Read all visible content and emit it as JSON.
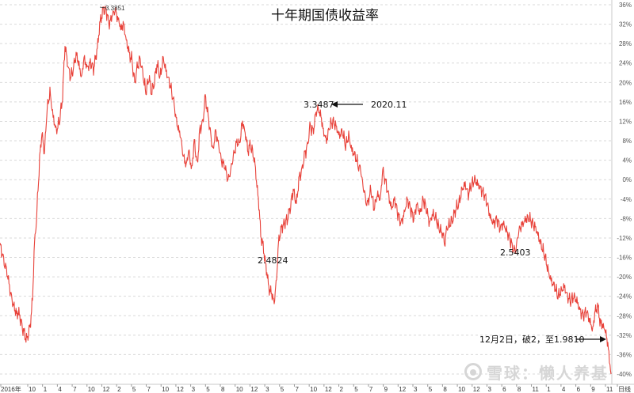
{
  "chart_data": {
    "type": "line",
    "title": "十年期国债收益率",
    "y_tick_labels": [
      "36%",
      "32%",
      "28%",
      "24%",
      "20%",
      "16%",
      "12%",
      "8%",
      "4%",
      "0%",
      "-4%",
      "-8%",
      "-12%",
      "-16%",
      "-20%",
      "-24%",
      "-28%",
      "-32%",
      "-36%",
      "-40%"
    ],
    "y_values": [
      36,
      32,
      28,
      24,
      20,
      16,
      12,
      8,
      4,
      0,
      -4,
      -8,
      -12,
      -16,
      -20,
      -24,
      -28,
      -32,
      -36,
      -40
    ],
    "ylim": [
      -41,
      37
    ],
    "x_tick_labels": [
      "2016年",
      "10",
      "1",
      "4",
      "7",
      "10",
      "12",
      "2",
      "5",
      "7",
      "10",
      "12",
      "3",
      "5",
      "8",
      "10",
      "12",
      "3",
      "5",
      "7",
      "10",
      "12",
      "2",
      "5",
      "7",
      "9",
      "12",
      "3",
      "5",
      "8",
      "10",
      "12",
      "3",
      "6",
      "8",
      "11",
      "1",
      "4",
      "6",
      "9",
      "11",
      "日线"
    ],
    "grid": true,
    "series": [
      {
        "color": "#e8423a",
        "anchors": [
          [
            0,
            -13.5
          ],
          [
            4,
            -16
          ],
          [
            10,
            -20
          ],
          [
            14,
            -24
          ],
          [
            19,
            -27
          ],
          [
            25,
            -28
          ],
          [
            29,
            -31
          ],
          [
            34,
            -33
          ],
          [
            38,
            -30
          ],
          [
            41,
            -25
          ],
          [
            43,
            -15
          ],
          [
            46,
            -8
          ],
          [
            50,
            4
          ],
          [
            53,
            10
          ],
          [
            56,
            5
          ],
          [
            59,
            14
          ],
          [
            63,
            18
          ],
          [
            67,
            13
          ],
          [
            71,
            10
          ],
          [
            75,
            12
          ],
          [
            79,
            17
          ],
          [
            82,
            28
          ],
          [
            85,
            24
          ],
          [
            89,
            21
          ],
          [
            93,
            23
          ],
          [
            96,
            26
          ],
          [
            99,
            24
          ],
          [
            103,
            21
          ],
          [
            106,
            25
          ],
          [
            110,
            23
          ],
          [
            114,
            24
          ],
          [
            118,
            23
          ],
          [
            121,
            25
          ],
          [
            124,
            29
          ],
          [
            127,
            33
          ],
          [
            130,
            35
          ],
          [
            134,
            34.8
          ],
          [
            138,
            32
          ],
          [
            142,
            34
          ],
          [
            145,
            35
          ],
          [
            149,
            33
          ],
          [
            153,
            31
          ],
          [
            156,
            32
          ],
          [
            160,
            28
          ],
          [
            163,
            26
          ],
          [
            166,
            25
          ],
          [
            170,
            20
          ],
          [
            173,
            23
          ],
          [
            177,
            25
          ],
          [
            180,
            22
          ],
          [
            184,
            18
          ],
          [
            188,
            21
          ],
          [
            191,
            18
          ],
          [
            195,
            20
          ],
          [
            198,
            24
          ],
          [
            202,
            21
          ],
          [
            206,
            25
          ],
          [
            210,
            22
          ],
          [
            214,
            20
          ],
          [
            218,
            17
          ],
          [
            221,
            14
          ],
          [
            224,
            11
          ],
          [
            228,
            9
          ],
          [
            231,
            5
          ],
          [
            235,
            3
          ],
          [
            238,
            6
          ],
          [
            242,
            2
          ],
          [
            245,
            8
          ],
          [
            249,
            3
          ],
          [
            252,
            10
          ],
          [
            256,
            12
          ],
          [
            259,
            17
          ],
          [
            262,
            14
          ],
          [
            266,
            9
          ],
          [
            269,
            6
          ],
          [
            272,
            10
          ],
          [
            276,
            7
          ],
          [
            279,
            4
          ],
          [
            283,
            3
          ],
          [
            286,
            1
          ],
          [
            289,
            0
          ],
          [
            292,
            3
          ],
          [
            295,
            5
          ],
          [
            299,
            8
          ],
          [
            302,
            7
          ],
          [
            306,
            12
          ],
          [
            310,
            9
          ],
          [
            313,
            6
          ],
          [
            316,
            7
          ],
          [
            320,
            5
          ],
          [
            323,
            1
          ],
          [
            326,
            -4
          ],
          [
            329,
            -11
          ],
          [
            332,
            -14
          ],
          [
            335,
            -17
          ],
          [
            338,
            -21
          ],
          [
            341,
            -23
          ],
          [
            344,
            -24
          ],
          [
            346,
            -25.5
          ],
          [
            349,
            -20
          ],
          [
            352,
            -12
          ],
          [
            355,
            -10
          ],
          [
            359,
            -9
          ],
          [
            363,
            -8
          ],
          [
            366,
            -6
          ],
          [
            370,
            -2
          ],
          [
            374,
            -5
          ],
          [
            377,
            0
          ],
          [
            381,
            2
          ],
          [
            384,
            5
          ],
          [
            388,
            7
          ],
          [
            391,
            11
          ],
          [
            395,
            10
          ],
          [
            398,
            13
          ],
          [
            401,
            14.8
          ],
          [
            405,
            13
          ],
          [
            408,
            10
          ],
          [
            412,
            8
          ],
          [
            416,
            11
          ],
          [
            420,
            12
          ],
          [
            424,
            11
          ],
          [
            428,
            9
          ],
          [
            432,
            10
          ],
          [
            436,
            7
          ],
          [
            440,
            9
          ],
          [
            444,
            6
          ],
          [
            448,
            5
          ],
          [
            452,
            3
          ],
          [
            455,
            2
          ],
          [
            458,
            -1
          ],
          [
            461,
            -4
          ],
          [
            464,
            -5
          ],
          [
            468,
            -2
          ],
          [
            472,
            -6
          ],
          [
            476,
            -3
          ],
          [
            480,
            -4
          ],
          [
            483,
            2
          ],
          [
            486,
            0
          ],
          [
            490,
            -3
          ],
          [
            494,
            -6
          ],
          [
            498,
            -4
          ],
          [
            502,
            -7
          ],
          [
            506,
            -9
          ],
          [
            510,
            -7
          ],
          [
            514,
            -4
          ],
          [
            518,
            -6
          ],
          [
            522,
            -8
          ],
          [
            526,
            -5
          ],
          [
            530,
            -7
          ],
          [
            534,
            -4
          ],
          [
            538,
            -6
          ],
          [
            542,
            -9
          ],
          [
            546,
            -7
          ],
          [
            550,
            -8
          ],
          [
            554,
            -10
          ],
          [
            558,
            -11
          ],
          [
            561,
            -13
          ],
          [
            564,
            -10
          ],
          [
            568,
            -9
          ],
          [
            572,
            -8
          ],
          [
            575,
            -6
          ],
          [
            579,
            -5
          ],
          [
            583,
            -2
          ],
          [
            587,
            -1
          ],
          [
            591,
            -3
          ],
          [
            595,
            -1
          ],
          [
            599,
            0
          ],
          [
            603,
            -1
          ],
          [
            607,
            -2
          ],
          [
            611,
            -3
          ],
          [
            615,
            -5
          ],
          [
            619,
            -8
          ],
          [
            623,
            -9
          ],
          [
            627,
            -8
          ],
          [
            631,
            -10
          ],
          [
            635,
            -9
          ],
          [
            639,
            -10.5
          ],
          [
            643,
            -12
          ],
          [
            647,
            -14
          ],
          [
            650,
            -15
          ],
          [
            653,
            -12
          ],
          [
            656,
            -10
          ],
          [
            660,
            -9
          ],
          [
            664,
            -8
          ],
          [
            668,
            -8
          ],
          [
            672,
            -9
          ],
          [
            676,
            -10
          ],
          [
            680,
            -12
          ],
          [
            684,
            -14
          ],
          [
            688,
            -16
          ],
          [
            692,
            -19
          ],
          [
            696,
            -21
          ],
          [
            700,
            -22
          ],
          [
            704,
            -24
          ],
          [
            708,
            -23
          ],
          [
            712,
            -22
          ],
          [
            716,
            -24
          ],
          [
            720,
            -25
          ],
          [
            724,
            -24
          ],
          [
            728,
            -25
          ],
          [
            732,
            -27
          ],
          [
            736,
            -28
          ],
          [
            740,
            -27
          ],
          [
            744,
            -29
          ],
          [
            748,
            -31
          ],
          [
            751,
            -27
          ],
          [
            754,
            -26
          ],
          [
            757,
            -29
          ],
          [
            760,
            -30
          ],
          [
            764,
            -31
          ],
          [
            767,
            -34
          ],
          [
            769,
            -37
          ],
          [
            771,
            -40
          ]
        ]
      }
    ],
    "annotations": [
      "3.3851",
      "3.3487",
      "2020.11",
      "2.4824",
      "2.5403",
      "12月2日，破2，至1.9810"
    ]
  },
  "watermark": {
    "text": "雪球：懒人养基"
  }
}
